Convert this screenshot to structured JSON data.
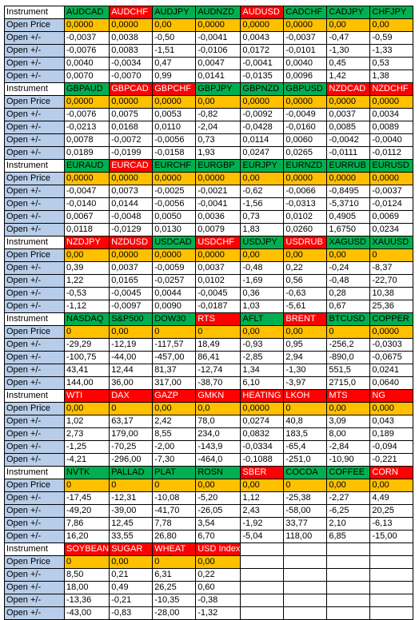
{
  "labels": {
    "instrument": "Instrument",
    "open_price": "Open Price",
    "open_change": "Open +/-"
  },
  "colors": {
    "label_blue": "#b7cde9",
    "header_green": "#00b050",
    "header_red": "#ff0000",
    "open_price_orange": "#ffc000"
  },
  "blocks": [
    {
      "headers": [
        {
          "name": "AUDCAD",
          "color": "green"
        },
        {
          "name": "AUDCHF",
          "color": "red"
        },
        {
          "name": "AUDJPY",
          "color": "green"
        },
        {
          "name": "AUDNZD",
          "color": "green"
        },
        {
          "name": "AUDUSD",
          "color": "red"
        },
        {
          "name": "CADCHF",
          "color": "green"
        },
        {
          "name": "CADJPY",
          "color": "green"
        },
        {
          "name": "CHFJPY",
          "color": "green"
        }
      ],
      "open_price": [
        "0,0000",
        "0,0000",
        "0,00",
        "0,0000",
        "0,0000",
        "0,0000",
        "0,00",
        "0,00"
      ],
      "rows": [
        [
          "-0,0037",
          "0,0038",
          "-0,50",
          "-0,0041",
          "0,0043",
          "-0,0037",
          "-0,47",
          "-0,59"
        ],
        [
          "-0,0076",
          "0,0083",
          "-1,51",
          "-0,0106",
          "0,0172",
          "-0,0101",
          "-1,30",
          "-1,33"
        ],
        [
          "0,0040",
          "-0,0034",
          "0,47",
          "0,0047",
          "-0,0041",
          "0,0040",
          "0,45",
          "0,53"
        ],
        [
          "0,0070",
          "-0,0070",
          "0,99",
          "0,0141",
          "-0,0135",
          "0,0096",
          "1,42",
          "1,38"
        ]
      ]
    },
    {
      "headers": [
        {
          "name": "GBPAUD",
          "color": "green"
        },
        {
          "name": "GBPCAD",
          "color": "red"
        },
        {
          "name": "GBPCHF",
          "color": "red"
        },
        {
          "name": "GBPJPY",
          "color": "green"
        },
        {
          "name": "GBPNZD",
          "color": "green"
        },
        {
          "name": "GBPUSD",
          "color": "green"
        },
        {
          "name": "NZDCAD",
          "color": "red"
        },
        {
          "name": "NZDCHF",
          "color": "red"
        }
      ],
      "open_price": [
        "0,0000",
        "0,0000",
        "0,0000",
        "0,00",
        "0,0000",
        "0,0000",
        "0,0000",
        "0,0000"
      ],
      "rows": [
        [
          "-0,0076",
          "0,0075",
          "0,0053",
          "-0,82",
          "-0,0092",
          "-0,0049",
          "0,0037",
          "0,0034"
        ],
        [
          "-0,0213",
          "0,0168",
          "0,0110",
          "-2,04",
          "-0,0428",
          "-0,0160",
          "0,0085",
          "0,0089"
        ],
        [
          "0,0078",
          "-0,0072",
          "-0,0056",
          "0,73",
          "0,0114",
          "0,0060",
          "-0,0042",
          "-0,0040"
        ],
        [
          "0,0189",
          "-0,0199",
          "-0,0158",
          "1,93",
          "0,0247",
          "0,0265",
          "-0,0111",
          "-0,0112"
        ]
      ]
    },
    {
      "headers": [
        {
          "name": "EURAUD",
          "color": "green"
        },
        {
          "name": "EURCAD",
          "color": "red"
        },
        {
          "name": "EURCHF",
          "color": "green"
        },
        {
          "name": "EURGBP",
          "color": "green"
        },
        {
          "name": "EURJPY",
          "color": "green"
        },
        {
          "name": "EURNZD",
          "color": "green"
        },
        {
          "name": "EURRUB",
          "color": "green"
        },
        {
          "name": "EURUSD",
          "color": "green"
        }
      ],
      "open_price": [
        "0,0000",
        "0,0000",
        "0,0000",
        "0,0000",
        "0,00",
        "0,0000",
        "0,0000",
        "0,0000"
      ],
      "rows": [
        [
          "-0,0047",
          "0,0073",
          "-0,0025",
          "-0,0021",
          "-0,62",
          "-0,0066",
          "-0,8495",
          "-0,0037"
        ],
        [
          "-0,0140",
          "0,0144",
          "-0,0056",
          "-0,0041",
          "-1,56",
          "-0,0313",
          "-5,3710",
          "-0,0124"
        ],
        [
          "0,0067",
          "-0,0048",
          "0,0050",
          "0,0036",
          "0,73",
          "0,0102",
          "0,4905",
          "0,0069"
        ],
        [
          "0,0118",
          "-0,0129",
          "0,0130",
          "0,0079",
          "1,83",
          "0,0260",
          "1,6750",
          "0,0234"
        ]
      ]
    },
    {
      "headers": [
        {
          "name": "NZDJPY",
          "color": "red"
        },
        {
          "name": "NZDUSD",
          "color": "red"
        },
        {
          "name": "USDCAD",
          "color": "green"
        },
        {
          "name": "USDCHF",
          "color": "red"
        },
        {
          "name": "USDJPY",
          "color": "green"
        },
        {
          "name": "USDRUB",
          "color": "red"
        },
        {
          "name": "XAGUSD",
          "color": "green"
        },
        {
          "name": "XAUUSD",
          "color": "green"
        }
      ],
      "open_price": [
        "0,00",
        "0,0000",
        "0,0000",
        "0,0000",
        "0,00",
        "0,00",
        "0,00",
        "0"
      ],
      "rows": [
        [
          "0,39",
          "0,0037",
          "-0,0059",
          "0,0037",
          "-0,48",
          "0,22",
          "-0,24",
          "-8,37"
        ],
        [
          "1,22",
          "0,0165",
          "-0,0257",
          "0,0102",
          "-1,69",
          "0,56",
          "-0,48",
          "-22,70"
        ],
        [
          "-0,53",
          "-0,0045",
          "0,0044",
          "-0,0045",
          "0,36",
          "-0,63",
          "0,28",
          "10,38"
        ],
        [
          "-1,12",
          "-0,0097",
          "0,0090",
          "-0,0187",
          "1,03",
          "-5,61",
          "0,67",
          "25,36"
        ]
      ]
    },
    {
      "headers": [
        {
          "name": "NASDAQ",
          "color": "green"
        },
        {
          "name": "S&P500",
          "color": "green"
        },
        {
          "name": "DOW30",
          "color": "green"
        },
        {
          "name": "RTS",
          "color": "red"
        },
        {
          "name": "AFLT",
          "color": "green"
        },
        {
          "name": "BRENT",
          "color": "red"
        },
        {
          "name": "BTCUSD",
          "color": "green"
        },
        {
          "name": "COPPER",
          "color": "green"
        }
      ],
      "open_price": [
        "0",
        "0,00",
        "0",
        "0",
        "0,00",
        "0,00",
        "0",
        "0,0000"
      ],
      "rows": [
        [
          "-29,29",
          "-12,19",
          "-117,57",
          "18,49",
          "-0,93",
          "0,95",
          "-256,2",
          "-0,0303"
        ],
        [
          "-100,75",
          "-44,00",
          "-457,00",
          "86,41",
          "-2,85",
          "2,94",
          "-890,0",
          "-0,0675"
        ],
        [
          "43,41",
          "12,44",
          "81,37",
          "-12,74",
          "1,34",
          "-1,30",
          "551,5",
          "0,0241"
        ],
        [
          "144,00",
          "36,00",
          "317,00",
          "-38,70",
          "6,10",
          "-3,97",
          "2715,0",
          "0,0640"
        ]
      ]
    },
    {
      "headers": [
        {
          "name": "WTI",
          "color": "red"
        },
        {
          "name": "DAX",
          "color": "red"
        },
        {
          "name": "GAZP",
          "color": "red"
        },
        {
          "name": "GMKN",
          "color": "red"
        },
        {
          "name": "HEATING",
          "color": "red"
        },
        {
          "name": "LKOH",
          "color": "red"
        },
        {
          "name": "MTS",
          "color": "red"
        },
        {
          "name": "NG",
          "color": "red"
        }
      ],
      "open_price": [
        "0,00",
        "0",
        "0,00",
        "0,0",
        "0,0000",
        "0",
        "0,00",
        "0,000"
      ],
      "rows": [
        [
          "1,02",
          "63,17",
          "2,42",
          "78,0",
          "0,0274",
          "40,8",
          "3,09",
          "0,043"
        ],
        [
          "2,73",
          "179,00",
          "8,55",
          "234,0",
          "0,0832",
          "183,5",
          "8,00",
          "0,189"
        ],
        [
          "-1,25",
          "-70,25",
          "-2,00",
          "-143,9",
          "-0,0334",
          "-65,4",
          "-2,84",
          "-0,094"
        ],
        [
          "-4,21",
          "-296,00",
          "-7,30",
          "-464,0",
          "-0,1088",
          "-251,0",
          "-10,90",
          "-0,221"
        ]
      ]
    },
    {
      "headers": [
        {
          "name": "NVTK",
          "color": "green"
        },
        {
          "name": "PALLAD",
          "color": "green"
        },
        {
          "name": "PLAT",
          "color": "green"
        },
        {
          "name": "ROSN",
          "color": "green"
        },
        {
          "name": "SBER",
          "color": "red"
        },
        {
          "name": "COCOA",
          "color": "green"
        },
        {
          "name": "COFFEE",
          "color": "green"
        },
        {
          "name": "CORN",
          "color": "red"
        }
      ],
      "open_price": [
        "0",
        "0",
        "0",
        "0,00",
        "0,00",
        "0",
        "0,00",
        "0,00"
      ],
      "rows": [
        [
          "-17,45",
          "-12,31",
          "-10,08",
          "-5,20",
          "1,12",
          "-25,38",
          "-2,27",
          "4,49"
        ],
        [
          "-49,20",
          "-39,00",
          "-41,70",
          "-26,05",
          "2,43",
          "-58,00",
          "-6,25",
          "20,25"
        ],
        [
          "7,86",
          "12,45",
          "7,78",
          "3,54",
          "-1,92",
          "33,77",
          "2,10",
          "-6,13"
        ],
        [
          "16,20",
          "33,55",
          "26,80",
          "6,70",
          "-5,04",
          "118,00",
          "6,85",
          "-15,00"
        ]
      ]
    },
    {
      "headers": [
        {
          "name": "SOYBEAN",
          "color": "red"
        },
        {
          "name": "SUGAR",
          "color": "red"
        },
        {
          "name": "WHEAT",
          "color": "red"
        },
        {
          "name": "USD Index",
          "color": "red"
        }
      ],
      "open_price": [
        "0",
        "0,00",
        "0",
        "0,00"
      ],
      "rows": [
        [
          "8,50",
          "0,21",
          "6,31",
          "0,22"
        ],
        [
          "18,00",
          "0,49",
          "26,25",
          "0,60"
        ],
        [
          "-13,36",
          "-0,21",
          "-10,35",
          "-0,38"
        ],
        [
          "-43,00",
          "-0,83",
          "-28,00",
          "-1,32"
        ]
      ]
    }
  ]
}
